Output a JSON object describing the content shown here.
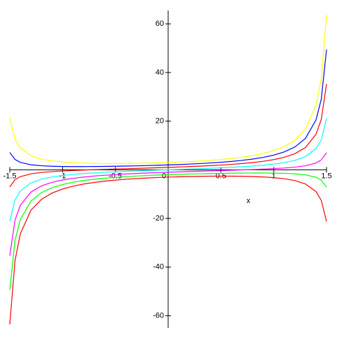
{
  "chart_data": {
    "type": "line",
    "x_label": "x",
    "x": [
      -1.5,
      -1.45,
      -1.4,
      -1.3,
      -1.2,
      -1.1,
      -1,
      -0.9,
      -0.8,
      -0.7,
      -0.6,
      -0.5,
      -0.4,
      -0.3,
      -0.2,
      -0.1,
      0,
      0.1,
      0.2,
      0.3,
      0.4,
      0.5,
      0.6,
      0.7,
      0.8,
      0.9,
      1,
      1.1,
      1.2,
      1.3,
      1.4,
      1.45,
      1.5
    ],
    "series": [
      {
        "color": "#ffff00",
        "values": [
          21.26,
          12.54,
          8.95,
          5.81,
          4.42,
          3.67,
          3.22,
          2.94,
          2.76,
          2.66,
          2.61,
          2.6,
          2.62,
          2.68,
          2.76,
          2.87,
          3,
          3.17,
          3.37,
          3.6,
          3.89,
          4.24,
          4.66,
          5.19,
          5.85,
          6.72,
          7.89,
          9.56,
          12.14,
          16.62,
          26.35,
          37.25,
          63.56
        ]
      },
      {
        "color": "#0000ff",
        "values": [
          7.12,
          4.24,
          3.07,
          2.07,
          1.66,
          1.46,
          1.37,
          1.33,
          1.33,
          1.35,
          1.4,
          1.46,
          1.54,
          1.63,
          1.74,
          1.86,
          2,
          2.16,
          2.35,
          2.56,
          2.81,
          3.1,
          3.45,
          3.88,
          4.41,
          5.11,
          6.04,
          7.36,
          9.38,
          12.88,
          20.46,
          28.95,
          49.43
        ]
      },
      {
        "color": "#ff0000",
        "values": [
          -7.02,
          -4.06,
          -2.81,
          -1.67,
          -1.1,
          -0.74,
          -0.49,
          -0.28,
          -0.11,
          0.05,
          0.19,
          0.32,
          0.45,
          0.58,
          0.72,
          0.86,
          1,
          1.16,
          1.32,
          1.51,
          1.72,
          1.96,
          2.24,
          2.57,
          2.98,
          3.5,
          4.19,
          5.15,
          6.62,
          9.14,
          14.58,
          20.66,
          35.29
        ]
      },
      {
        "color": "#00ffff",
        "values": [
          -21.15,
          -12.36,
          -8.7,
          -5.4,
          -3.86,
          -2.95,
          -2.34,
          -1.89,
          -1.54,
          -1.26,
          -1.03,
          -0.82,
          -0.63,
          -0.46,
          -0.3,
          -0.15,
          0,
          0.15,
          0.3,
          0.46,
          0.63,
          0.82,
          1.03,
          1.26,
          1.54,
          1.89,
          2.34,
          2.95,
          3.86,
          5.4,
          8.7,
          12.36,
          21.15
        ]
      },
      {
        "color": "#ff00ff",
        "values": [
          -35.29,
          -20.66,
          -14.58,
          -9.14,
          -6.62,
          -5.15,
          -4.19,
          -3.5,
          -2.98,
          -2.57,
          -2.24,
          -1.96,
          -1.72,
          -1.51,
          -1.32,
          -1.16,
          -1,
          -0.86,
          -0.72,
          -0.58,
          -0.45,
          -0.32,
          -0.19,
          -0.05,
          0.11,
          0.28,
          0.49,
          0.74,
          1.1,
          1.67,
          2.81,
          4.06,
          7.02
        ]
      },
      {
        "color": "#00ff00",
        "values": [
          -49.43,
          -28.95,
          -20.46,
          -12.88,
          -9.38,
          -7.36,
          -6.04,
          -5.11,
          -4.41,
          -3.88,
          -3.45,
          -3.1,
          -2.81,
          -2.56,
          -2.35,
          -2.16,
          -2,
          -1.86,
          -1.74,
          -1.63,
          -1.54,
          -1.46,
          -1.4,
          -1.35,
          -1.33,
          -1.33,
          -1.37,
          -1.46,
          -1.66,
          -2.07,
          -3.07,
          -4.24,
          -7.12
        ]
      },
      {
        "color": "#ff0000",
        "values": [
          -63.56,
          -37.25,
          -26.35,
          -16.62,
          -12.14,
          -9.56,
          -7.89,
          -6.72,
          -5.85,
          -5.19,
          -4.66,
          -4.24,
          -3.89,
          -3.6,
          -3.37,
          -3.17,
          -3,
          -2.87,
          -2.76,
          -2.68,
          -2.62,
          -2.6,
          -2.61,
          -2.66,
          -2.76,
          -2.94,
          -3.22,
          -3.67,
          -4.42,
          -5.81,
          -8.95,
          -12.54,
          -21.26
        ]
      }
    ],
    "xlim": [
      -1.5,
      1.5
    ],
    "xticks": [
      -1.5,
      -1,
      -0.5,
      0,
      0.5,
      1,
      1.5
    ],
    "ylim": [
      -65,
      65.5
    ],
    "yticks": [
      -60,
      -40,
      -20,
      20,
      40,
      60
    ]
  }
}
